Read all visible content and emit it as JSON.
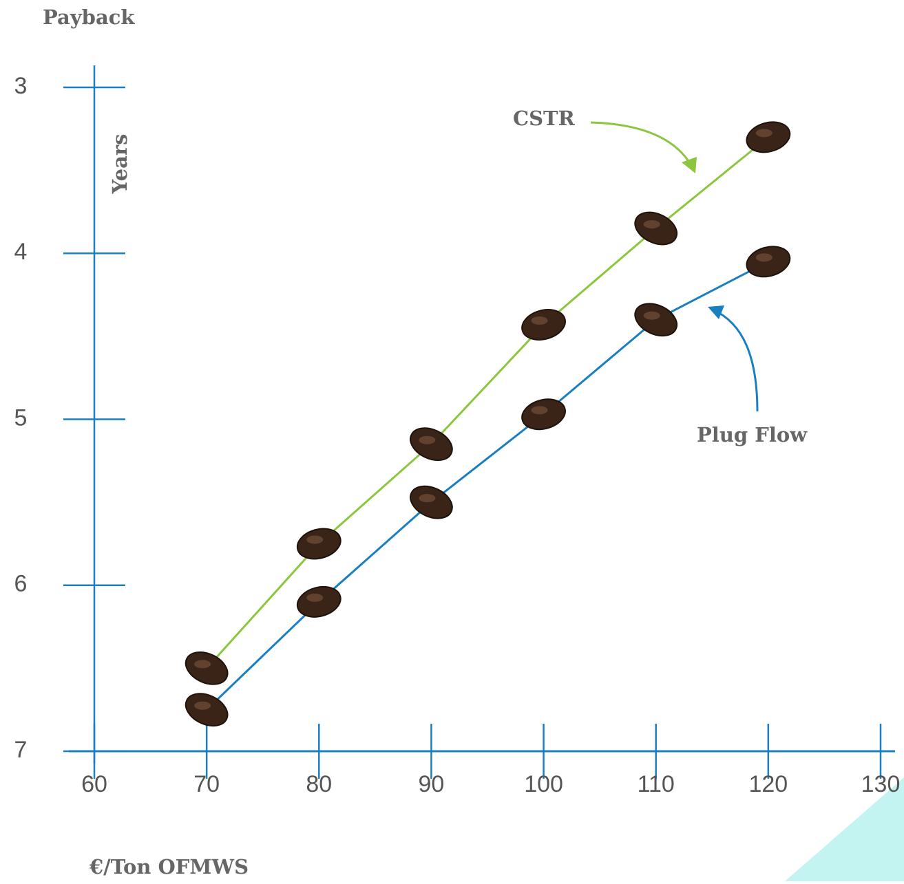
{
  "chart_data": {
    "type": "line",
    "title": "Payback",
    "y_label": "Years",
    "x_label": "€/Ton OFMWS",
    "x": [
      70,
      80,
      90,
      100,
      110,
      120
    ],
    "series": [
      {
        "name": "CSTR",
        "color": "#8cc63f",
        "values": [
          6.5,
          5.75,
          5.15,
          4.43,
          3.85,
          3.3
        ]
      },
      {
        "name": "Plug Flow",
        "color": "#1a7fc1",
        "values": [
          6.75,
          6.1,
          5.5,
          4.97,
          4.4,
          4.05
        ]
      }
    ],
    "xlim": [
      60,
      130
    ],
    "xticks": [
      60,
      70,
      80,
      90,
      100,
      110,
      120,
      130
    ],
    "ylim": [
      3,
      7
    ],
    "yticks": [
      3,
      4,
      5,
      6,
      7
    ],
    "y_inverted": true,
    "axis_color": "#1a7fc1"
  }
}
